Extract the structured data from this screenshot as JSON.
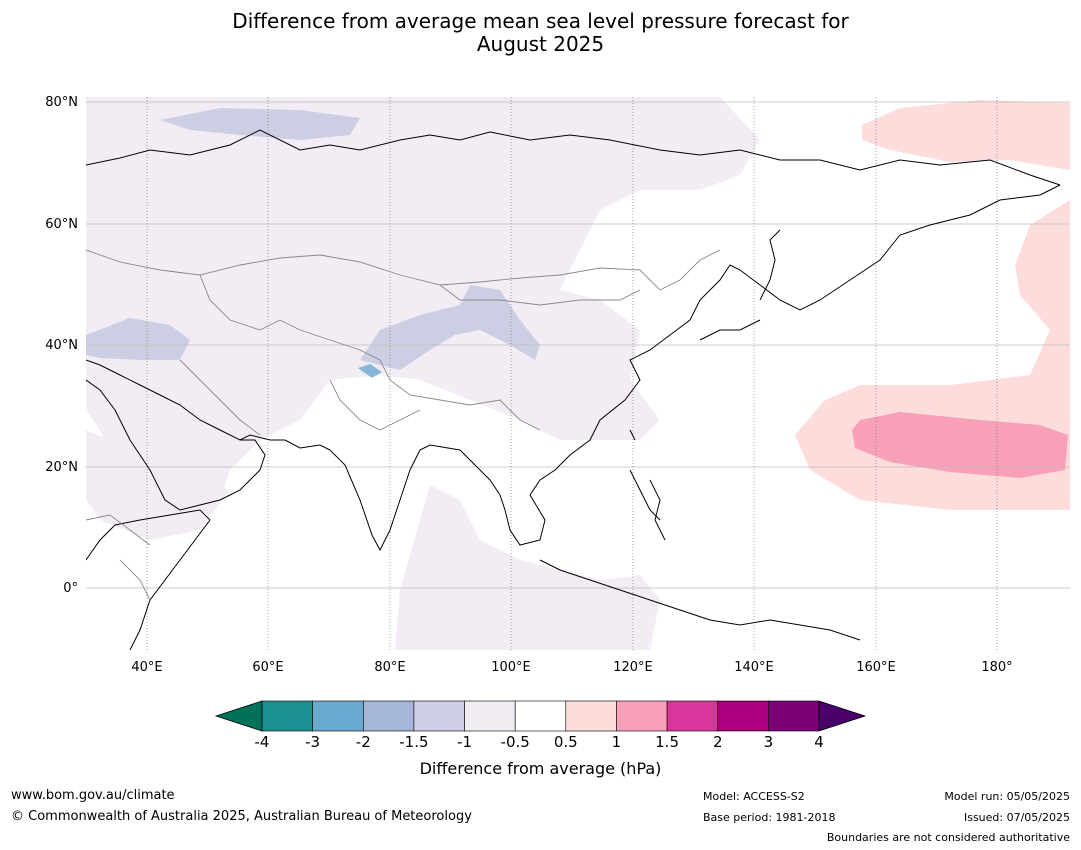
{
  "title_line1": "Difference from average mean sea level pressure forecast for",
  "title_line2": "August 2025",
  "latitudes": [
    "80°N",
    "60°N",
    "40°N",
    "20°N",
    "0°"
  ],
  "longitudes": [
    "40°E",
    "60°E",
    "80°E",
    "100°E",
    "120°E",
    "140°E",
    "160°E",
    "180°"
  ],
  "colorbar": {
    "ticks": [
      "-4",
      "-3",
      "-2",
      "-1.5",
      "-1",
      "-0.5",
      "0.5",
      "1",
      "1.5",
      "2",
      "3",
      "4"
    ],
    "colors": [
      "#1a8f94",
      "#6aa9d0",
      "#a6b6d6",
      "#cccfe3",
      "#f3ecf5",
      "#ffffff",
      "#fddcdc",
      "#f8a0b8",
      "#d8369a",
      "#aa007f",
      "#7a0077"
    ],
    "low_extend_color": "#00725c",
    "high_extend_color": "#4a006a",
    "label": "Difference from average (hPa)"
  },
  "footer": {
    "website": "www.bom.gov.au/climate",
    "copyright": "© Commonwealth of Australia 2025, Australian Bureau of Meteorology",
    "model": "Model: ACCESS-S2",
    "base_period": "Base period: 1981-2018",
    "model_run": "Model run: 05/05/2025",
    "issued": "Issued: 07/05/2025",
    "disclaimer": "Boundaries are not considered authoritative"
  }
}
